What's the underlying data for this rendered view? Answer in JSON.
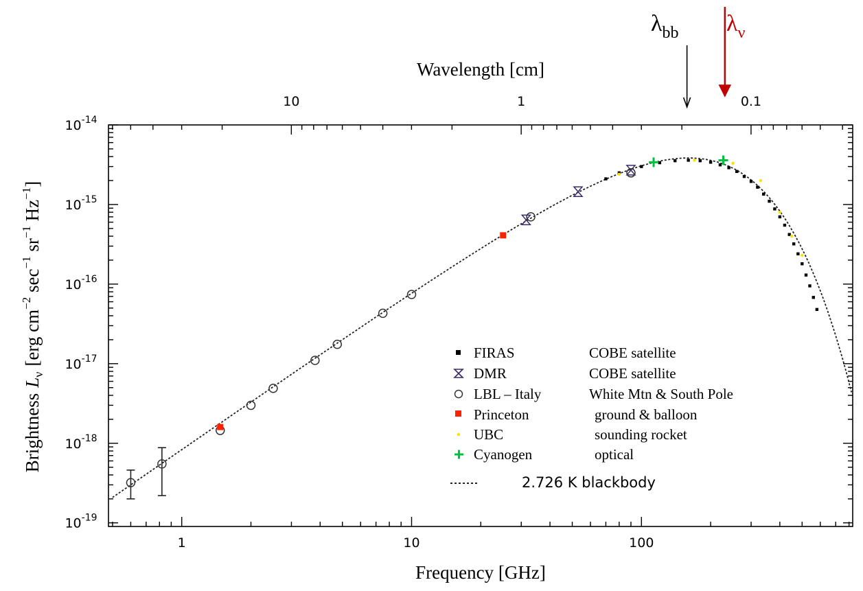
{
  "chart_data": {
    "type": "scatter",
    "title": "",
    "xlabel": "Frequency [GHz]",
    "xlabel_top": "Wavelength [cm]",
    "ylabel_prefix": "Brightness",
    "ylabel_symbol": "L",
    "ylabel_subscript": "ν",
    "ylabel_units": {
      "open": "[erg cm",
      "e1": "−2",
      "t1": " sec",
      "e2": "−1",
      "t2": " sr",
      "e3": "−1",
      "t3": " Hz",
      "e4": "−1",
      "close": "]"
    },
    "x_scale": "log",
    "y_scale": "log",
    "xlim": [
      0.48,
      830
    ],
    "ylim": [
      9e-20,
      1e-14
    ],
    "x_ticks": [
      {
        "value": 1,
        "label": "1"
      },
      {
        "value": 10,
        "label": "10"
      },
      {
        "value": 100,
        "label": "100"
      }
    ],
    "top_ticks": [
      {
        "value": 10,
        "label": "10"
      },
      {
        "value": 1,
        "label": "1"
      },
      {
        "value": 0.1,
        "label": "0.1"
      }
    ],
    "y_ticks": [
      {
        "value": 1e-19,
        "base": "10",
        "exp": "-19"
      },
      {
        "value": 1e-18,
        "base": "10",
        "exp": "-18"
      },
      {
        "value": 1e-17,
        "base": "10",
        "exp": "-17"
      },
      {
        "value": 1e-16,
        "base": "10",
        "exp": "-16"
      },
      {
        "value": 1e-15,
        "base": "10",
        "exp": "-15"
      },
      {
        "value": 1e-14,
        "base": "10",
        "exp": "-14"
      }
    ],
    "grid": false,
    "legend_position": "lower-right",
    "blackbody_temperature_K": 2.726,
    "series": [
      {
        "name": "FIRAS",
        "description": "COBE satellite",
        "marker": "square-small",
        "color": "#000000",
        "x": [
          70,
          80,
          100,
          120,
          140,
          160,
          180,
          200,
          220,
          240,
          260,
          280,
          300,
          320,
          340,
          360,
          380,
          400,
          420,
          440,
          460,
          480,
          500,
          520,
          540,
          560,
          580
        ],
        "y": [
          2.1e-15,
          2.5e-15,
          3e-15,
          3.35e-15,
          3.55e-15,
          3.6e-15,
          3.55e-15,
          3.4e-15,
          3.15e-15,
          2.9e-15,
          2.6e-15,
          2.25e-15,
          1.95e-15,
          1.65e-15,
          1.35e-15,
          1.1e-15,
          8.8e-16,
          7e-16,
          5.5e-16,
          4.2e-16,
          3.2e-16,
          2.4e-16,
          1.8e-16,
          1.3e-16,
          9.5e-17,
          6.8e-17,
          4.8e-17
        ]
      },
      {
        "name": "DMR",
        "description": "COBE satellite",
        "marker": "hourglass",
        "color": "#3a2a6a",
        "x": [
          31.5,
          53,
          90
        ],
        "y": [
          6.4e-16,
          1.45e-15,
          2.7e-15
        ]
      },
      {
        "name": "LBL – Italy",
        "description": "White Mtn & South Pole",
        "marker": "circle-open",
        "color": "#333333",
        "x": [
          0.6,
          0.82,
          1.47,
          2.0,
          2.5,
          3.8,
          4.75,
          7.5,
          10,
          33,
          90
        ],
        "y": [
          3.2e-19,
          5.5e-19,
          1.45e-18,
          3e-18,
          4.9e-18,
          1.1e-17,
          1.75e-17,
          4.3e-17,
          7.4e-17,
          7e-16,
          2.5e-15
        ],
        "y_err_low": [
          2e-19,
          2.2e-19,
          null,
          null,
          null,
          null,
          null,
          null,
          null,
          null,
          null
        ],
        "y_err_high": [
          4.6e-19,
          8.8e-19,
          null,
          null,
          null,
          null,
          null,
          null,
          null,
          null,
          null
        ]
      },
      {
        "name": "Princeton",
        "description": "ground & balloon",
        "marker": "square-filled",
        "color": "#ff2200",
        "x": [
          1.47,
          25
        ],
        "y": [
          1.6e-18,
          4.1e-16
        ]
      },
      {
        "name": "UBC",
        "description": "sounding rocket",
        "marker": "dot",
        "color": "#ffe000",
        "x": [
          80,
          170,
          250,
          330,
          400,
          450,
          500
        ],
        "y": [
          2.4e-15,
          3.6e-15,
          3.3e-15,
          2e-15,
          8e-16,
          4e-16,
          2.3e-16
        ]
      },
      {
        "name": "Cyanogen",
        "description": "optical",
        "marker": "plus",
        "color": "#00c040",
        "x": [
          113,
          227
        ],
        "y": [
          3.4e-15,
          3.6e-15
        ]
      }
    ],
    "blackbody_legend_label": "2.726 K blackbody",
    "annotations": [
      {
        "kind": "arrow",
        "base": "λ",
        "sub": "bb",
        "color": "#000000",
        "wavelength_cm": 0.19
      },
      {
        "kind": "arrow",
        "base": "λ",
        "sub": "ν",
        "color": "#c00000",
        "wavelength_cm": 0.13
      }
    ]
  }
}
